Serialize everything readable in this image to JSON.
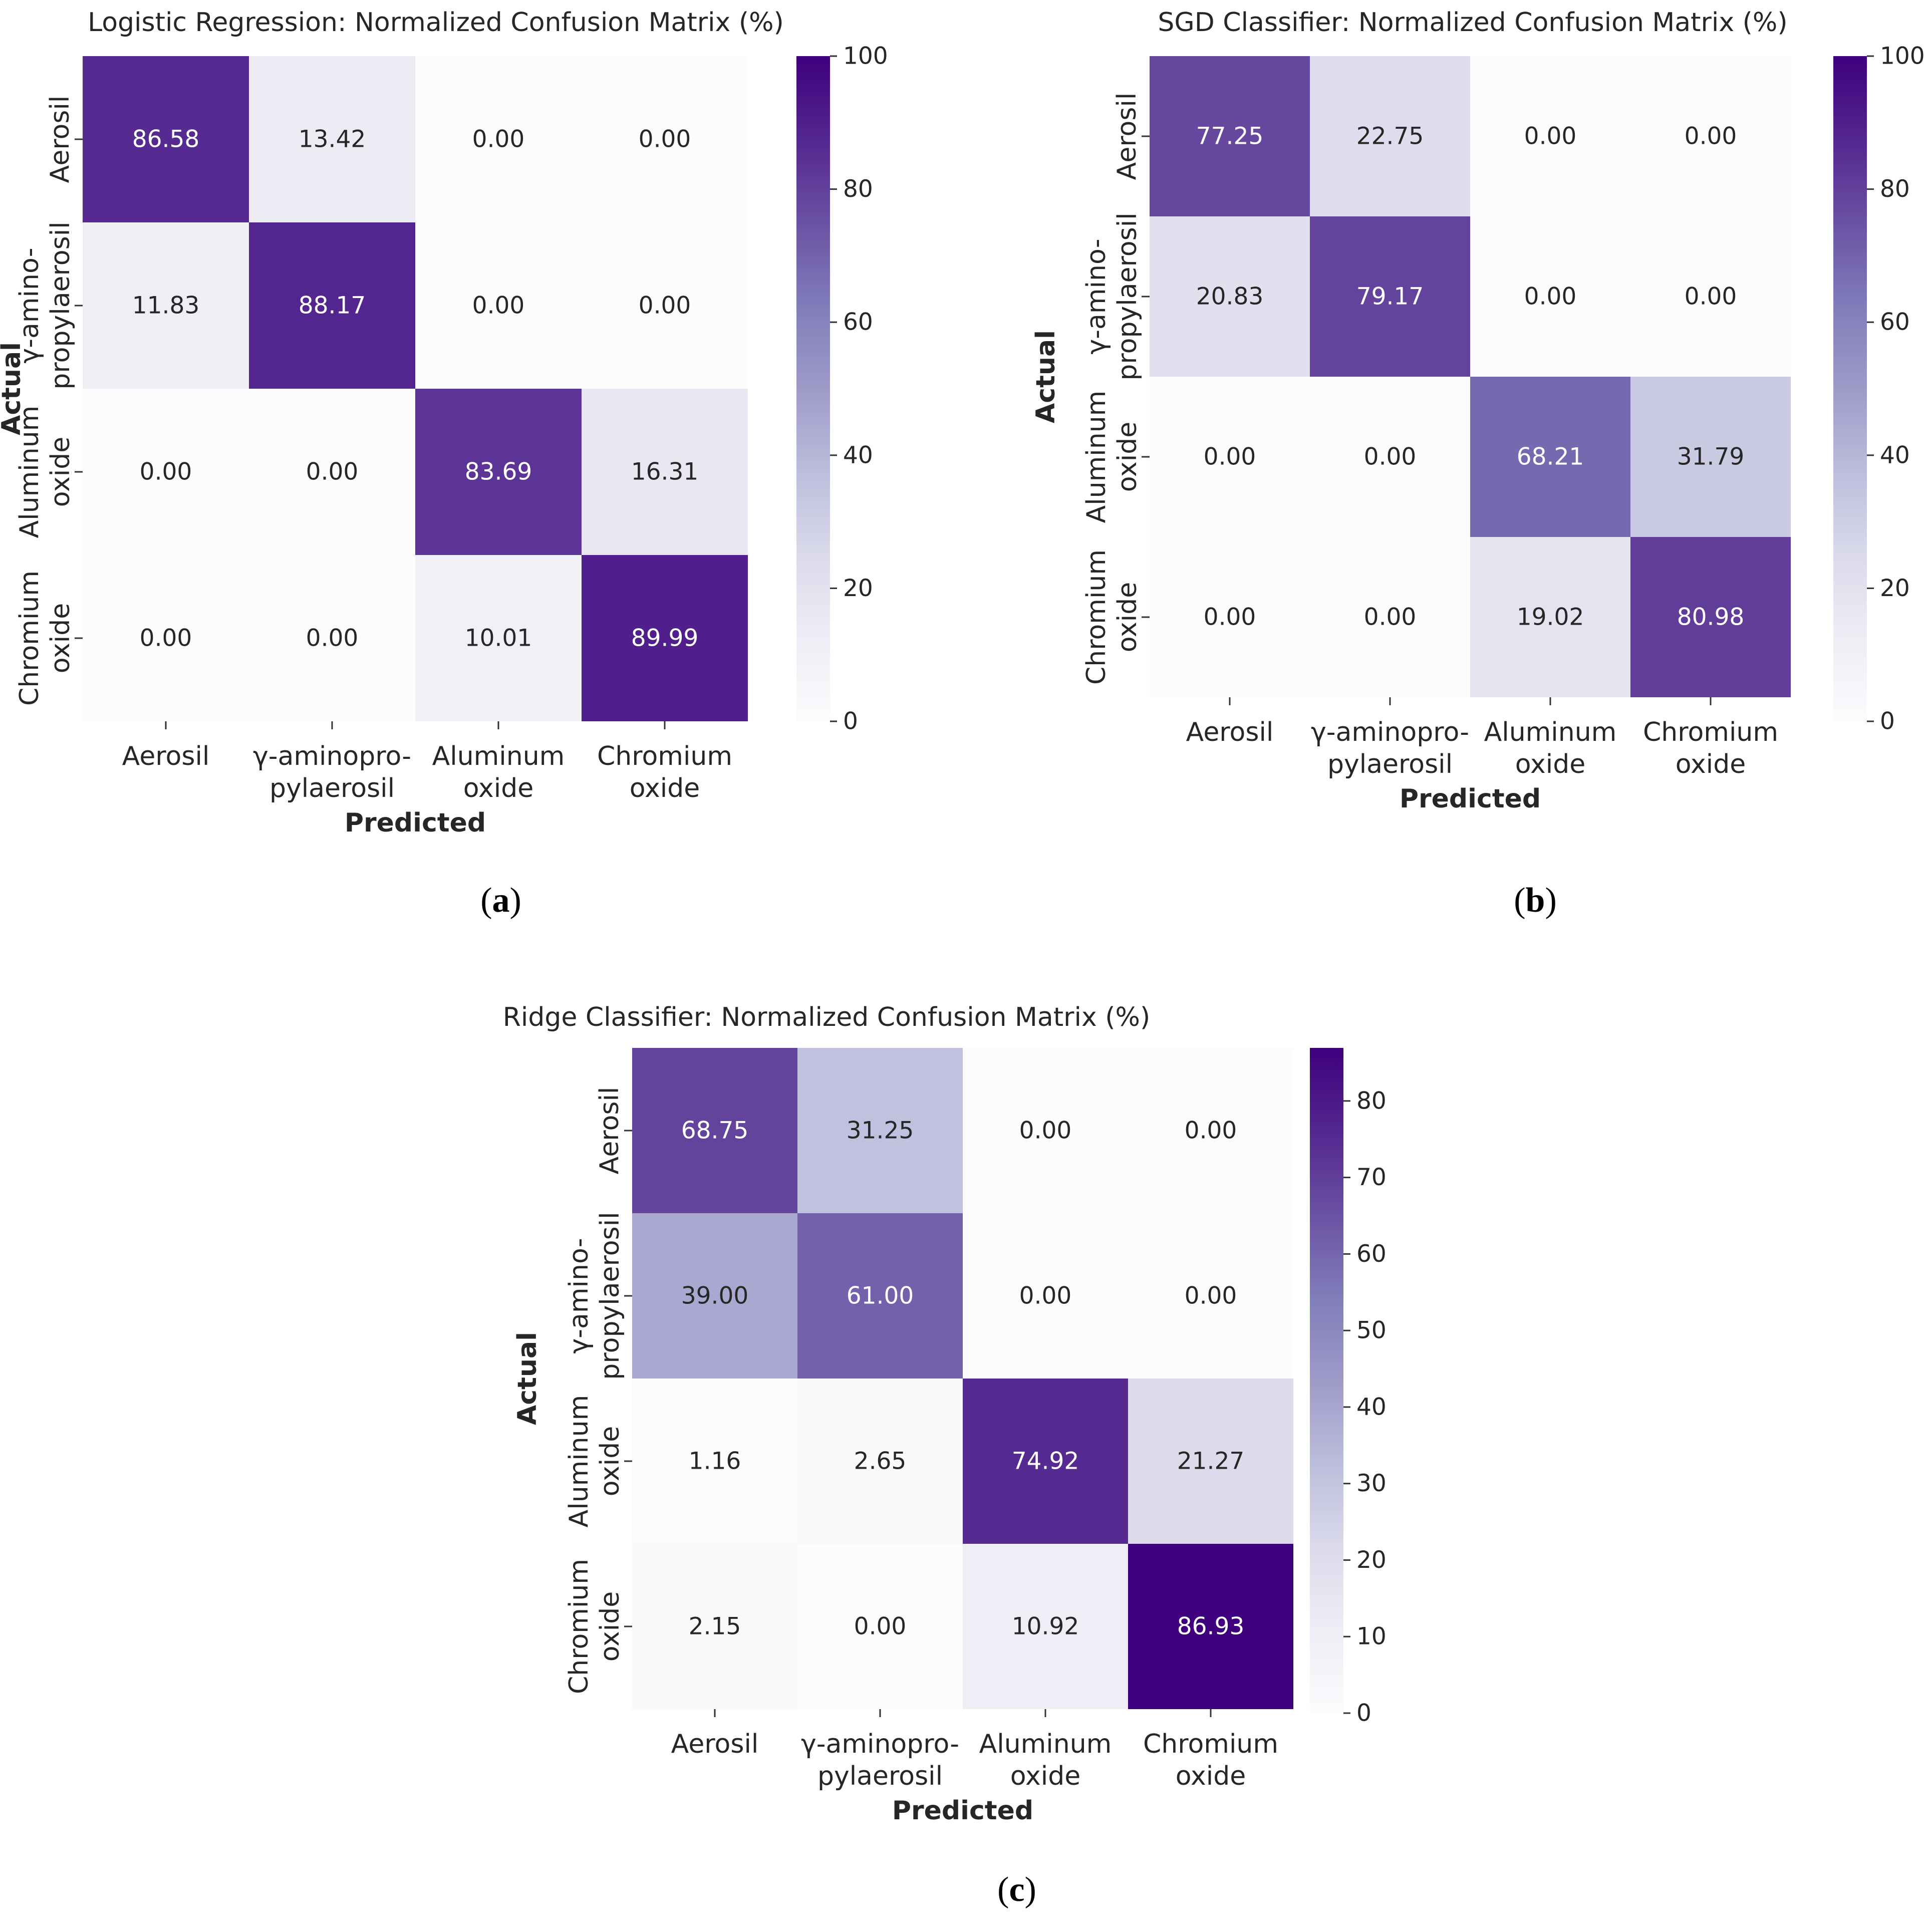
{
  "chart_data": [
    {
      "type": "heatmap",
      "panel_label": "a",
      "title": "Logistic Regression: Normalized Confusion Matrix (%)",
      "xlabel": "Predicted",
      "ylabel": "Actual",
      "x_categories": [
        [
          "Aerosil"
        ],
        [
          "γ-aminopro-",
          "pylaerosil"
        ],
        [
          "Aluminum",
          "oxide"
        ],
        [
          "Chromium",
          "oxide"
        ]
      ],
      "y_categories": [
        [
          "Aerosil"
        ],
        [
          "γ-amino-",
          "propylaerosil"
        ],
        [
          "Aluminum",
          "oxide"
        ],
        [
          "Chromium",
          "oxide"
        ]
      ],
      "matrix": [
        [
          "86.58",
          "13.42",
          "0.00",
          "0.00"
        ],
        [
          "11.83",
          "88.17",
          "0.00",
          "0.00"
        ],
        [
          "0.00",
          "0.00",
          "83.69",
          "16.31"
        ],
        [
          "0.00",
          "0.00",
          "10.01",
          "89.99"
        ]
      ],
      "colorbar": {
        "min": 0,
        "max": 100,
        "ticks": [
          "0",
          "20",
          "40",
          "60",
          "80",
          "100"
        ]
      },
      "colormap": "Purples"
    },
    {
      "type": "heatmap",
      "panel_label": "b",
      "title": "SGD Classifier: Normalized Confusion Matrix (%)",
      "xlabel": "Predicted",
      "ylabel": "Actual",
      "x_categories": [
        [
          "Aerosil"
        ],
        [
          "γ-aminopro-",
          "pylaerosil"
        ],
        [
          "Aluminum",
          "oxide"
        ],
        [
          "Chromium",
          "oxide"
        ]
      ],
      "y_categories": [
        [
          "Aerosil"
        ],
        [
          "γ-amino-",
          "propylaerosil"
        ],
        [
          "Aluminum",
          "oxide"
        ],
        [
          "Chromium",
          "oxide"
        ]
      ],
      "matrix": [
        [
          "77.25",
          "22.75",
          "0.00",
          "0.00"
        ],
        [
          "20.83",
          "79.17",
          "0.00",
          "0.00"
        ],
        [
          "0.00",
          "0.00",
          "68.21",
          "31.79"
        ],
        [
          "0.00",
          "0.00",
          "19.02",
          "80.98"
        ]
      ],
      "colorbar": {
        "min": 0,
        "max": 100,
        "ticks": [
          "0",
          "20",
          "40",
          "60",
          "80",
          "100"
        ]
      },
      "colormap": "Purples"
    },
    {
      "type": "heatmap",
      "panel_label": "c",
      "title": "Ridge Classifier: Normalized Confusion Matrix (%)",
      "xlabel": "Predicted",
      "ylabel": "Actual",
      "x_categories": [
        [
          "Aerosil"
        ],
        [
          "γ-aminopro-",
          "pylaerosil"
        ],
        [
          "Aluminum",
          "oxide"
        ],
        [
          "Chromium",
          "oxide"
        ]
      ],
      "y_categories": [
        [
          "Aerosil"
        ],
        [
          "γ-amino-",
          "propylaerosil"
        ],
        [
          "Aluminum",
          "oxide"
        ],
        [
          "Chromium",
          "oxide"
        ]
      ],
      "matrix": [
        [
          "68.75",
          "31.25",
          "0.00",
          "0.00"
        ],
        [
          "39.00",
          "61.00",
          "0.00",
          "0.00"
        ],
        [
          "1.16",
          "2.65",
          "74.92",
          "21.27"
        ],
        [
          "2.15",
          "0.00",
          "10.92",
          "86.93"
        ]
      ],
      "colorbar": {
        "min": 0,
        "max": 86.93,
        "ticks": [
          "0",
          "10",
          "20",
          "30",
          "40",
          "50",
          "60",
          "70",
          "80"
        ]
      },
      "colormap": "Purples"
    }
  ]
}
